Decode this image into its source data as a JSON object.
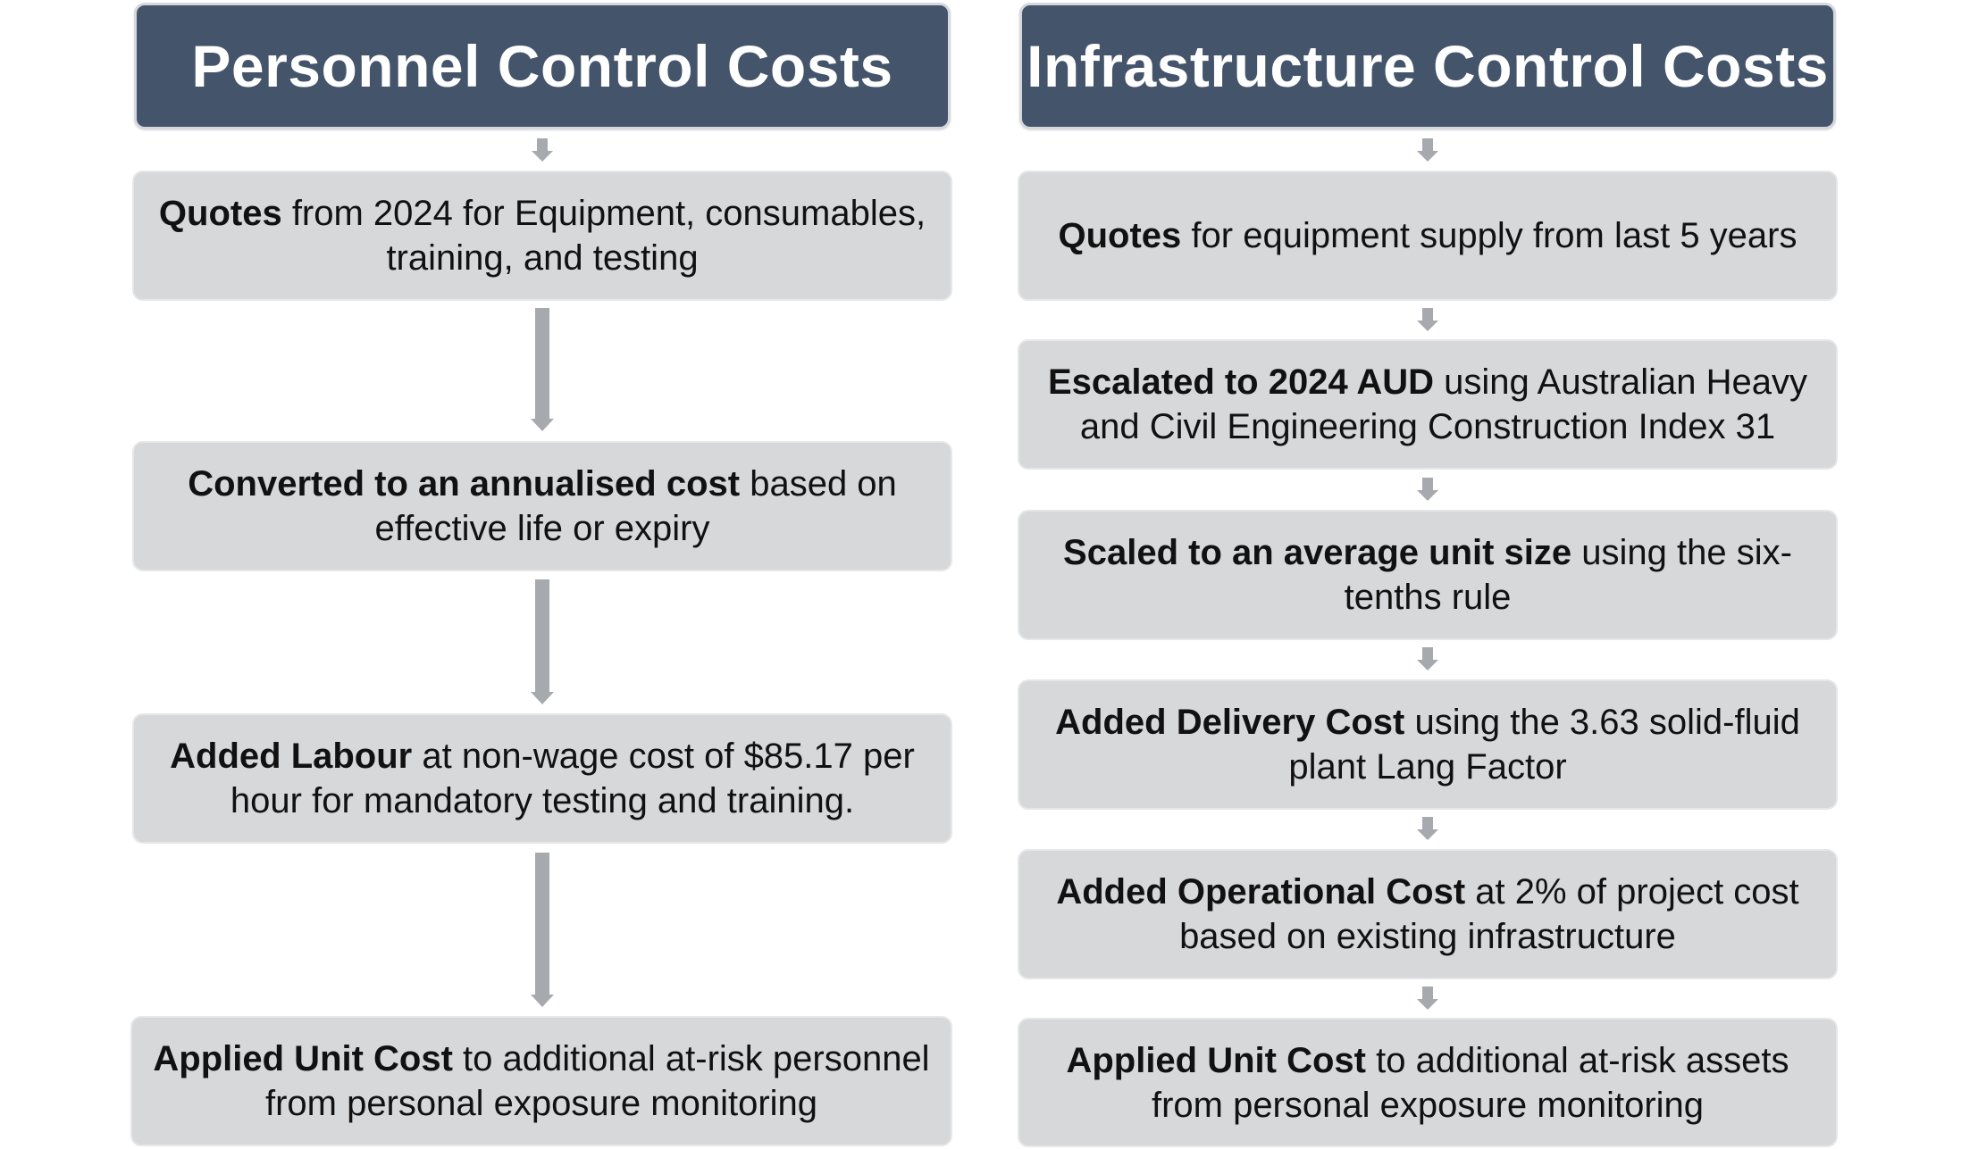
{
  "left": {
    "title": "Personnel Control Costs",
    "steps": [
      {
        "bold": "Quotes",
        "rest": " from 2024 for Equipment, consumables, training, and testing"
      },
      {
        "bold": "Converted to an annualised cost",
        "rest": " based on effective life or expiry"
      },
      {
        "bold": "Added Labour",
        "rest": " at non-wage cost of $85.17 per hour for mandatory testing and training."
      },
      {
        "bold": "Applied Unit Cost",
        "rest": " to additional at-risk personnel from personal exposure monitoring"
      }
    ]
  },
  "right": {
    "title": "Infrastructure Control Costs",
    "steps": [
      {
        "bold": "Quotes",
        "rest": " for equipment supply from last 5 years"
      },
      {
        "bold": "Escalated to 2024 AUD",
        "rest": " using Australian Heavy and Civil Engineering Construction Index 31"
      },
      {
        "bold": "Scaled to an average unit size",
        "rest": " using the six-tenths rule"
      },
      {
        "bold": "Added Delivery Cost",
        "rest": " using the 3.63 solid-fluid plant Lang Factor"
      },
      {
        "bold": "Added Operational Cost",
        "rest": " at 2% of project cost based on existing infrastructure"
      },
      {
        "bold": "Applied Unit Cost",
        "rest": " to additional at-risk assets from personal exposure monitoring"
      }
    ]
  },
  "colors": {
    "header_fill": "#44546a",
    "header_text": "#ffffff",
    "box_fill": "#d7d8da",
    "arrow": "#a6a9ae"
  }
}
